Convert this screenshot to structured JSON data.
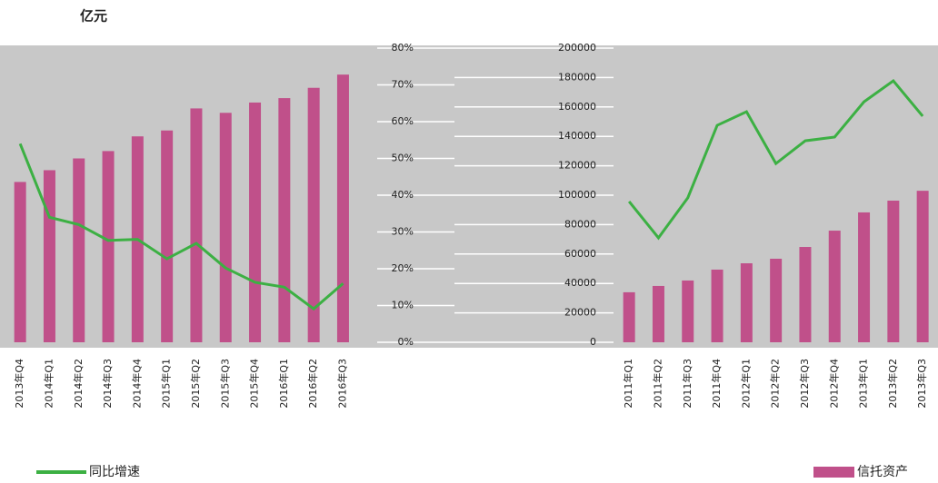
{
  "chart_data": [
    {
      "type": "bar",
      "y_label": "亿元",
      "categories": [
        "2013年Q4",
        "2014年Q1",
        "2014年Q2",
        "2014年Q3",
        "2014年Q4",
        "2015年Q1",
        "2015年Q2",
        "2015年Q3",
        "2015年Q4",
        "2016年Q1",
        "2016年Q2",
        "2016年Q3"
      ],
      "series": [
        {
          "name": "信托资产",
          "color": "#c0508a",
          "values": [
            109000,
            117000,
            125000,
            130000,
            140000,
            144000,
            159000,
            156000,
            163000,
            166000,
            173000,
            182000
          ]
        },
        {
          "name": "同比增速",
          "color": "#3cb043",
          "axis": "y2",
          "values": [
            54,
            34,
            32,
            27.7,
            28,
            22.7,
            26.9,
            20.2,
            16.3,
            15,
            9.1,
            16
          ]
        }
      ],
      "ylim": [
        0,
        200000
      ],
      "y2lim": [
        0,
        80
      ],
      "y2ticks": [
        {
          "value": 0,
          "label": "0%"
        },
        {
          "value": 10,
          "label": "10%"
        },
        {
          "value": 20,
          "label": "20%"
        },
        {
          "value": 30,
          "label": "30%"
        },
        {
          "value": 40,
          "label": "40%"
        },
        {
          "value": 50,
          "label": "50%"
        },
        {
          "value": 60,
          "label": "60%"
        },
        {
          "value": 70,
          "label": "70%"
        },
        {
          "value": 80,
          "label": "80%"
        }
      ]
    },
    {
      "type": "bar",
      "categories": [
        "2011年Q1",
        "2011年Q2",
        "2011年Q3",
        "2011年Q4",
        "2012年Q1",
        "2012年Q2",
        "2012年Q3",
        "2012年Q4",
        "2013年Q1",
        "2013年Q2",
        "2013年Q3"
      ],
      "series": [
        {
          "name": "信托资产",
          "color": "#c0508a",
          "values": [
            34000,
            38300,
            42000,
            49400,
            53700,
            56800,
            64800,
            75900,
            88300,
            96300,
            103000
          ]
        },
        {
          "name": "同比增速",
          "color": "#3cb043",
          "axis": "y2",
          "values": [
            38.3,
            28.4,
            39.3,
            59,
            62.7,
            48.6,
            54.8,
            55.8,
            65.4,
            71.1,
            61.5
          ]
        }
      ],
      "ylim": [
        0,
        200000
      ],
      "y2lim": [
        0,
        80
      ],
      "yticks": [
        0,
        20000,
        40000,
        60000,
        80000,
        100000,
        120000,
        140000,
        160000,
        180000,
        200000
      ]
    }
  ]
}
